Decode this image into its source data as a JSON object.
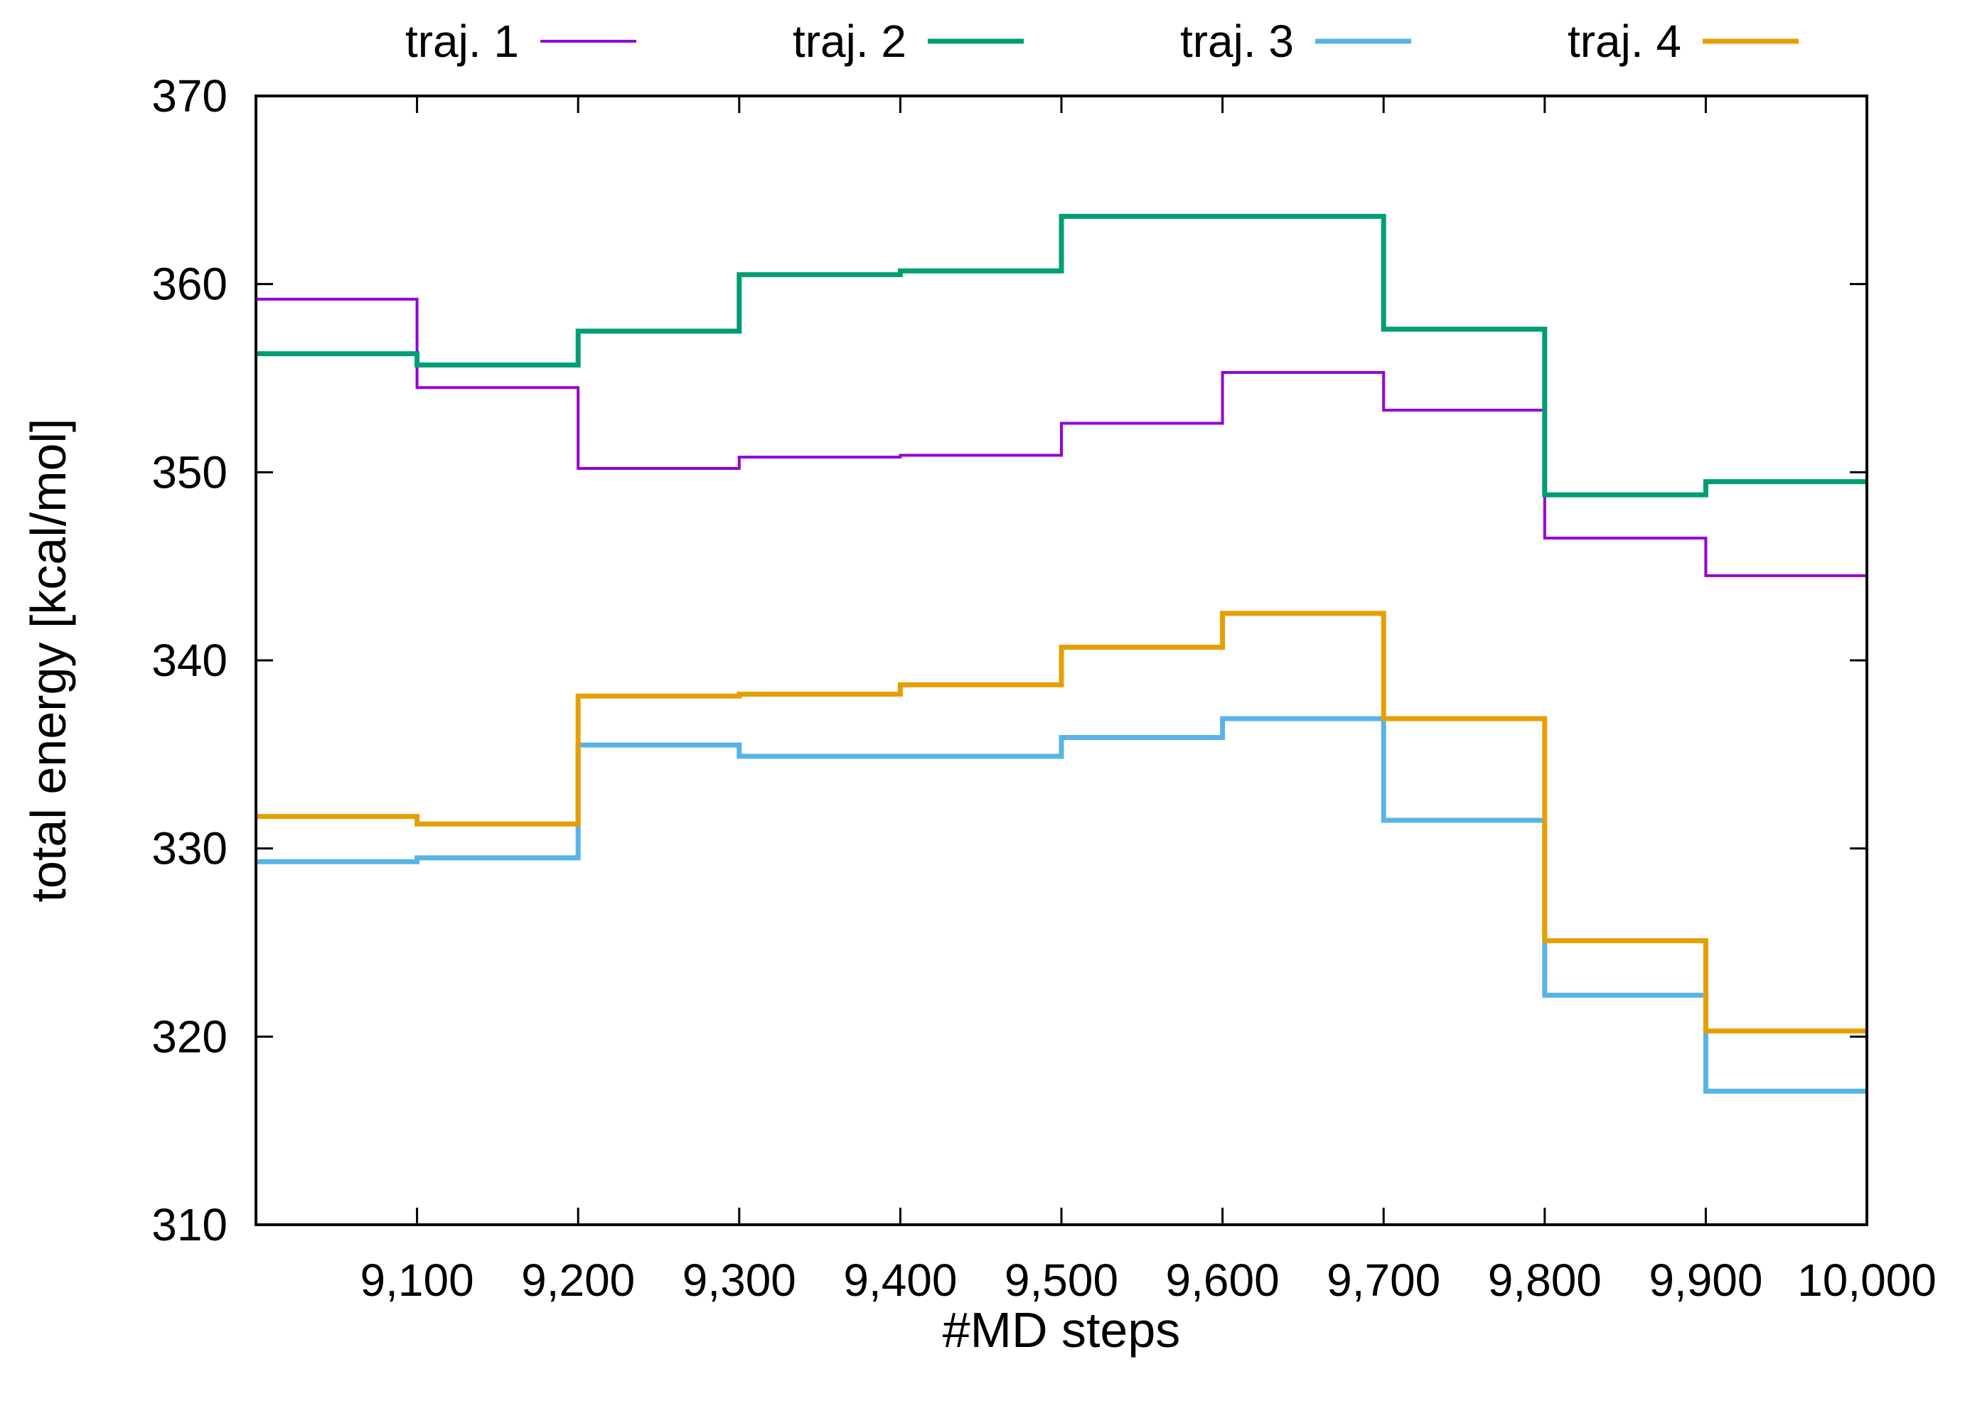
{
  "chart_data": {
    "type": "line",
    "step": true,
    "title": "",
    "xlabel": "#MD steps",
    "ylabel": "total energy [kcal/mol]",
    "xlim": [
      9000,
      10000
    ],
    "ylim": [
      310,
      370
    ],
    "xticks": [
      9100,
      9200,
      9300,
      9400,
      9500,
      9600,
      9700,
      9800,
      9900,
      10000
    ],
    "xtick_labels": [
      "9,100",
      "9,200",
      "9,300",
      "9,400",
      "9,500",
      "9,600",
      "9,700",
      "9,800",
      "9,900",
      "10,000"
    ],
    "yticks": [
      310,
      320,
      330,
      340,
      350,
      360,
      370
    ],
    "ytick_labels": [
      "310",
      "320",
      "330",
      "340",
      "350",
      "360",
      "370"
    ],
    "legend_position": "top, outside plot",
    "series": [
      {
        "name": "traj. 1",
        "color": "#9400d3",
        "width": "thin",
        "x": [
          9000,
          9100,
          9200,
          9300,
          9400,
          9500,
          9600,
          9700,
          9800,
          9900,
          10000
        ],
        "values": [
          359.2,
          354.5,
          350.2,
          350.8,
          350.9,
          352.6,
          355.3,
          353.3,
          346.5,
          344.5,
          344.5
        ]
      },
      {
        "name": "traj. 2",
        "color": "#009e73",
        "width": "thick",
        "x": [
          9000,
          9100,
          9200,
          9300,
          9400,
          9500,
          9600,
          9700,
          9800,
          9900,
          10000
        ],
        "values": [
          356.3,
          355.7,
          357.5,
          360.5,
          360.7,
          363.6,
          363.6,
          357.6,
          348.8,
          349.5,
          349.5
        ]
      },
      {
        "name": "traj. 3",
        "color": "#56b4e9",
        "width": "thick",
        "x": [
          9000,
          9100,
          9200,
          9300,
          9400,
          9500,
          9600,
          9700,
          9800,
          9900,
          10000
        ],
        "values": [
          329.3,
          329.5,
          335.5,
          334.9,
          334.9,
          335.9,
          336.9,
          331.5,
          322.2,
          317.1,
          317.1
        ]
      },
      {
        "name": "traj. 4",
        "color": "#e69f00",
        "width": "thick",
        "x": [
          9000,
          9100,
          9200,
          9300,
          9400,
          9500,
          9600,
          9700,
          9800,
          9900,
          10000
        ],
        "values": [
          331.7,
          331.3,
          338.1,
          338.2,
          338.7,
          340.7,
          342.5,
          336.9,
          325.1,
          320.3,
          320.3
        ]
      }
    ]
  }
}
